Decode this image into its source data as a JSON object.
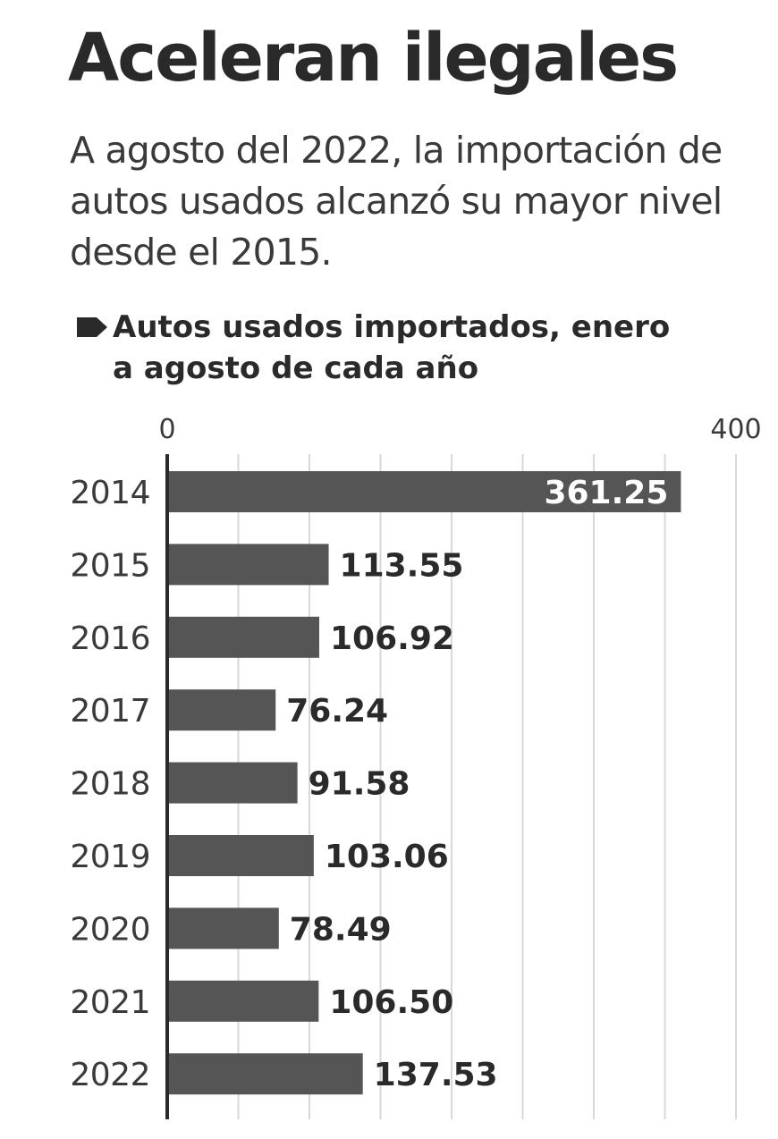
{
  "header": {
    "title": "Aceleran ilegales",
    "subtitle": "A agosto del 2022, la importación de autos usados alcanzó su mayor nivel desde el 2015."
  },
  "chart_data": {
    "type": "bar",
    "orientation": "horizontal",
    "title": "Autos usados importados, enero a agosto de cada año",
    "categories": [
      "2014",
      "2015",
      "2016",
      "2017",
      "2018",
      "2019",
      "2020",
      "2021",
      "2022"
    ],
    "values": [
      361.25,
      113.55,
      106.92,
      76.24,
      91.58,
      103.06,
      78.49,
      106.5,
      137.53
    ],
    "value_labels": [
      "361.25",
      "113.55",
      "106.92",
      "76.24",
      "91.58",
      "103.06",
      "78.49",
      "106.50",
      "137.53"
    ],
    "xlim": [
      0,
      400
    ],
    "x_tick_labels": [
      "0",
      "400"
    ],
    "gridlines": [
      50,
      100,
      150,
      200,
      250,
      300,
      350,
      400
    ],
    "grid": true,
    "colors": {
      "bar": "#555555",
      "grid": "#d8d8d8",
      "axis": "#2a2a2a",
      "text": "#2a2a2a"
    }
  }
}
